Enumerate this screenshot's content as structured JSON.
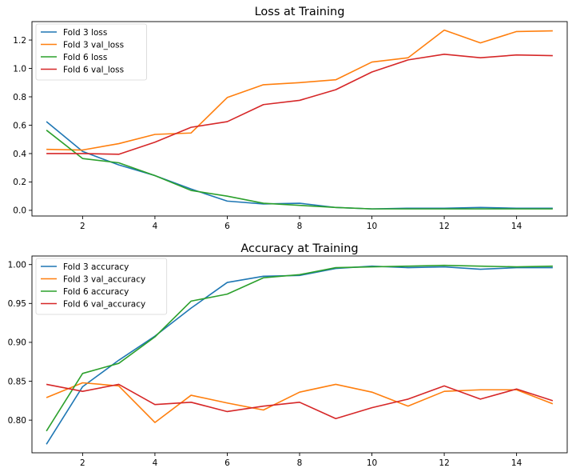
{
  "chart_data": [
    {
      "type": "line",
      "title": "Loss at Training",
      "xlabel": "",
      "ylabel": "",
      "x": [
        1,
        2,
        3,
        4,
        5,
        6,
        7,
        8,
        9,
        10,
        11,
        12,
        13,
        14,
        15
      ],
      "xlim": [
        0.6,
        15.4
      ],
      "ylim": [
        -0.04,
        1.33
      ],
      "xticks": [
        2,
        4,
        6,
        8,
        10,
        12,
        14
      ],
      "yticks": [
        0.0,
        0.2,
        0.4,
        0.6,
        0.8,
        1.0,
        1.2
      ],
      "xtick_labels": [
        "2",
        "4",
        "6",
        "8",
        "10",
        "12",
        "14"
      ],
      "ytick_labels": [
        "0.0",
        "0.2",
        "0.4",
        "0.6",
        "0.8",
        "1.0",
        "1.2"
      ],
      "grid": false,
      "legend_position": "upper-left",
      "series": [
        {
          "name": "Fold 3 loss",
          "color": "#1f77b4",
          "values": [
            0.625,
            0.415,
            0.32,
            0.245,
            0.15,
            0.065,
            0.045,
            0.05,
            0.02,
            0.01,
            0.015,
            0.015,
            0.02,
            0.015,
            0.015
          ]
        },
        {
          "name": "Fold 3 val_loss",
          "color": "#ff7f0e",
          "values": [
            0.43,
            0.425,
            0.47,
            0.535,
            0.545,
            0.795,
            0.885,
            0.9,
            0.92,
            1.045,
            1.075,
            1.27,
            1.18,
            1.26,
            1.265
          ]
        },
        {
          "name": "Fold 6 loss",
          "color": "#2ca02c",
          "values": [
            0.565,
            0.365,
            0.335,
            0.245,
            0.14,
            0.1,
            0.05,
            0.035,
            0.02,
            0.01,
            0.01,
            0.01,
            0.01,
            0.01,
            0.01
          ]
        },
        {
          "name": "Fold 6 val_loss",
          "color": "#d62728",
          "values": [
            0.4,
            0.4,
            0.395,
            0.48,
            0.585,
            0.625,
            0.745,
            0.775,
            0.85,
            0.975,
            1.06,
            1.1,
            1.075,
            1.095,
            1.09
          ]
        }
      ]
    },
    {
      "type": "line",
      "title": "Accuracy at Training",
      "xlabel": "",
      "ylabel": "",
      "x": [
        1,
        2,
        3,
        4,
        5,
        6,
        7,
        8,
        9,
        10,
        11,
        12,
        13,
        14,
        15
      ],
      "xlim": [
        0.6,
        15.4
      ],
      "ylim": [
        0.758,
        1.011
      ],
      "xticks": [
        2,
        4,
        6,
        8,
        10,
        12,
        14
      ],
      "yticks": [
        0.8,
        0.85,
        0.9,
        0.95,
        1.0
      ],
      "xtick_labels": [
        "2",
        "4",
        "6",
        "8",
        "10",
        "12",
        "14"
      ],
      "ytick_labels": [
        "0.80",
        "0.85",
        "0.90",
        "0.95",
        "1.00"
      ],
      "grid": false,
      "legend_position": "upper-left",
      "series": [
        {
          "name": "Fold 3 accuracy",
          "color": "#1f77b4",
          "values": [
            0.769,
            0.843,
            0.877,
            0.908,
            0.944,
            0.977,
            0.985,
            0.986,
            0.995,
            0.998,
            0.996,
            0.997,
            0.994,
            0.996,
            0.996
          ]
        },
        {
          "name": "Fold 3 val_accuracy",
          "color": "#ff7f0e",
          "values": [
            0.829,
            0.848,
            0.844,
            0.797,
            0.832,
            0.822,
            0.813,
            0.836,
            0.846,
            0.836,
            0.818,
            0.837,
            0.839,
            0.839,
            0.821
          ]
        },
        {
          "name": "Fold 6 accuracy",
          "color": "#2ca02c",
          "values": [
            0.786,
            0.86,
            0.873,
            0.907,
            0.953,
            0.962,
            0.983,
            0.987,
            0.996,
            0.997,
            0.998,
            0.999,
            0.998,
            0.997,
            0.998
          ]
        },
        {
          "name": "Fold 6 val_accuracy",
          "color": "#d62728",
          "values": [
            0.846,
            0.837,
            0.846,
            0.82,
            0.823,
            0.811,
            0.818,
            0.823,
            0.802,
            0.816,
            0.827,
            0.844,
            0.827,
            0.84,
            0.825
          ]
        }
      ]
    }
  ]
}
